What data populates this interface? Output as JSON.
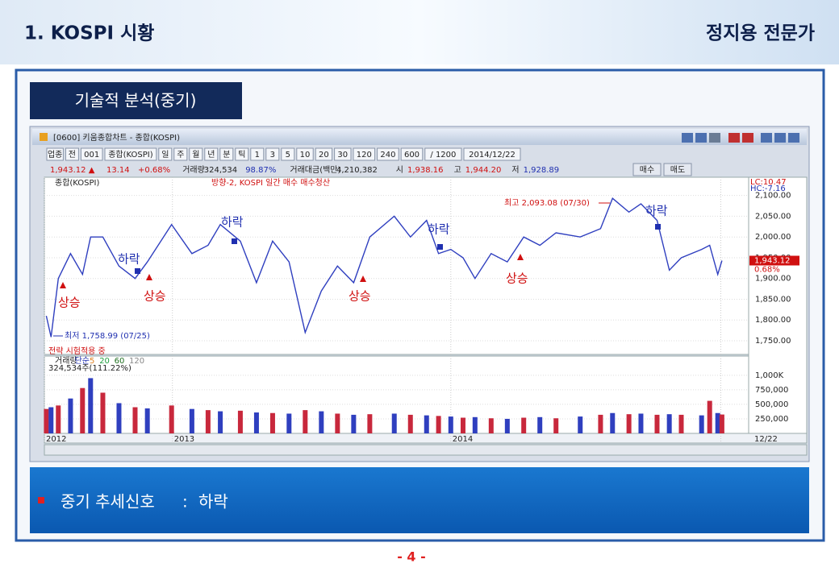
{
  "header": {
    "title": "1. KOSPI 시황",
    "author": "정지용 전문가"
  },
  "section": {
    "title": "기술적 분석(중기)"
  },
  "window": {
    "title": "[0600] 키움종합차트 - 종합(KOSPI)",
    "toolbar": [
      "업종",
      "전",
      "001",
      "종합(KOSPI)",
      "일",
      "주",
      "월",
      "년",
      "분",
      "틱",
      "1",
      "3",
      "5",
      "10",
      "20",
      "30",
      "120",
      "240",
      "600",
      "/ 1200",
      "2014/12/22"
    ],
    "quote": [
      "1,943.12 ▲",
      "13.14",
      "+0.68%",
      "거래량",
      "324,534",
      "98.87%",
      "거래대금(백만)",
      "4,210,382",
      "시",
      "1,938.16",
      "고",
      "1,944.20",
      "저",
      "1,928.89"
    ],
    "buttons": [
      "매수",
      "매도"
    ]
  },
  "chart_data": [
    {
      "type": "line",
      "title": "종합(KOSPI)",
      "strategy": "방향-2, KOSPI 일간 매수 매수청산",
      "note": "전략 시험적용 중",
      "lc": "LC:10.47",
      "hc": "HC:-7.16",
      "price_tag": "1,943.12",
      "change_tag": "0.68%",
      "color": "#2f3fbf",
      "x": [
        2012.547,
        2012.564,
        2012.59,
        2012.634,
        2012.677,
        2012.706,
        2012.75,
        2012.808,
        2012.866,
        2012.91,
        2012.997,
        2013.07,
        2013.128,
        2013.172,
        2013.244,
        2013.302,
        2013.36,
        2013.419,
        2013.477,
        2013.535,
        2013.593,
        2013.651,
        2013.709,
        2013.797,
        2013.855,
        2013.913,
        2013.956,
        2014.0,
        2014.044,
        2014.087,
        2014.145,
        2014.203,
        2014.262,
        2014.32,
        2014.378,
        2014.465,
        2014.538,
        2014.581,
        2014.64,
        2014.683,
        2014.741,
        2014.785,
        2014.828,
        2014.901,
        2014.93,
        2014.959,
        2014.974
      ],
      "values": [
        1810,
        1758.99,
        1900,
        1960,
        1910,
        2000,
        2000,
        1930,
        1900,
        1940,
        2030,
        1960,
        1980,
        2030,
        1990,
        1890,
        1990,
        1940,
        1770,
        1870,
        1930,
        1890,
        2000,
        2050,
        2000,
        2040,
        1960,
        1970,
        1950,
        1900,
        1960,
        1940,
        2000,
        1980,
        2010,
        2000,
        2020,
        2093.08,
        2060,
        2080,
        2040,
        1920,
        1950,
        1970,
        1980,
        1910,
        1943.12
      ],
      "xlim": [
        2012.54,
        2015.07
      ],
      "xticks": [
        {
          "value": 2012.54,
          "label": "2012"
        },
        2013,
        2014,
        {
          "value": 2014.97,
          "label": "12/22"
        }
      ],
      "ylim": [
        1717,
        2144
      ],
      "yticks": [
        {
          "value": 1750,
          "label": "1,750.00"
        },
        {
          "value": 1800,
          "label": "1,800.00"
        },
        {
          "value": 1850,
          "label": "1,850.00"
        },
        {
          "value": 1900,
          "label": "1,900.00"
        },
        {
          "value": 1950,
          "label": "1,950.00"
        },
        {
          "value": 2000,
          "label": "2,000.00"
        },
        {
          "value": 2050,
          "label": "2,050.00"
        },
        {
          "value": 2100,
          "label": "2,100.00"
        }
      ],
      "annotations": [
        "최저 1,758.99 (07/25)",
        "최고 2,093.08 (07/30)",
        "상승",
        "상승",
        "상승",
        "상승",
        "하락",
        "하락",
        "하락",
        "하락"
      ]
    },
    {
      "type": "bar",
      "legend": [
        "거래량",
        "단순",
        "5",
        "20",
        "60",
        "120"
      ],
      "info": "324,534주(111.22%)",
      "color": "#c8283c",
      "x": [
        2012.547,
        2012.564,
        2012.59,
        2012.634,
        2012.677,
        2012.706,
        2012.75,
        2012.808,
        2012.866,
        2012.91,
        2012.997,
        2013.07,
        2013.128,
        2013.172,
        2013.244,
        2013.302,
        2013.36,
        2013.419,
        2013.477,
        2013.535,
        2013.593,
        2013.651,
        2013.709,
        2013.797,
        2013.855,
        2013.913,
        2013.956,
        2014.0,
        2014.044,
        2014.087,
        2014.145,
        2014.203,
        2014.262,
        2014.32,
        2014.378,
        2014.465,
        2014.538,
        2014.581,
        2014.64,
        2014.683,
        2014.741,
        2014.785,
        2014.828,
        2014.901,
        2014.93,
        2014.959,
        2014.974
      ],
      "values": [
        420000,
        450000,
        480000,
        600000,
        780000,
        950000,
        700000,
        520000,
        450000,
        430000,
        480000,
        420000,
        400000,
        380000,
        390000,
        360000,
        350000,
        340000,
        400000,
        380000,
        340000,
        320000,
        330000,
        340000,
        320000,
        310000,
        300000,
        290000,
        270000,
        280000,
        260000,
        250000,
        270000,
        280000,
        260000,
        290000,
        320000,
        350000,
        330000,
        340000,
        320000,
        330000,
        320000,
        310000,
        560000,
        350000,
        324534
      ],
      "ylim": [
        0,
        1330000
      ],
      "yticks": [
        {
          "value": 250000,
          "label": "250,000"
        },
        {
          "value": 500000,
          "label": "500,000"
        },
        {
          "value": 750000,
          "label": "750,000"
        },
        {
          "value": 1000000,
          "label": "1,000K"
        }
      ]
    }
  ],
  "signal": {
    "label": "중기 추세신호",
    "separator": ":",
    "value": "하락"
  },
  "footer": {
    "page": "- 4 -"
  }
}
